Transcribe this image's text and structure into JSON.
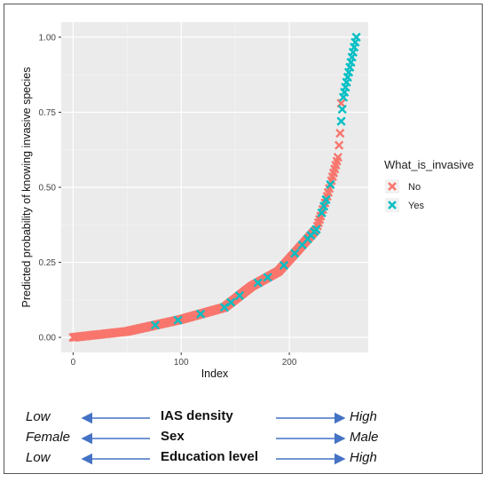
{
  "chart_data": {
    "type": "scatter",
    "title": "",
    "xlabel": "Index",
    "ylabel": "Predicted probability of knowing invasive species",
    "xlim": [
      -11,
      273
    ],
    "ylim": [
      -0.05,
      1.05
    ],
    "x_ticks": [
      0,
      100,
      200
    ],
    "x_tick_labels": [
      "0",
      "100",
      "200"
    ],
    "y_ticks": [
      0,
      0.25,
      0.5,
      0.75,
      1.0
    ],
    "y_tick_labels": [
      "0.00",
      "0.25",
      "0.50",
      "0.75",
      "1.00"
    ],
    "grid": true,
    "marker": "x",
    "legend": {
      "title": "What_is_invasive",
      "position": "right",
      "entries": [
        {
          "label": "No",
          "color": "#F8766D"
        },
        {
          "label": "Yes",
          "color": "#00BFC4"
        }
      ]
    },
    "series": [
      {
        "name": "No",
        "color": "#F8766D"
      },
      {
        "name": "Yes",
        "color": "#00BFC4"
      }
    ],
    "curve_keypoints": [
      [
        0,
        0.0
      ],
      [
        50,
        0.02
      ],
      [
        100,
        0.06
      ],
      [
        140,
        0.1
      ],
      [
        165,
        0.17
      ],
      [
        190,
        0.22
      ],
      [
        210,
        0.3
      ],
      [
        225,
        0.36
      ],
      [
        235,
        0.47
      ],
      [
        245,
        0.6
      ],
      [
        250,
        0.8
      ],
      [
        262,
        1.0
      ]
    ],
    "n_points": 262,
    "yes_indices": [
      76,
      97,
      118,
      140,
      146,
      154,
      171,
      180,
      195,
      205,
      212,
      217,
      220,
      223,
      225,
      230,
      232,
      234,
      238,
      248,
      249,
      250,
      251,
      252,
      253,
      254,
      255,
      256,
      257,
      258,
      259,
      260,
      261,
      262
    ],
    "no_outlier": {
      "x": 248,
      "y": 0.78
    }
  },
  "annotation": {
    "rows": [
      {
        "left": "Low",
        "middle": "IAS density",
        "right": "High"
      },
      {
        "left": "Female",
        "middle": "Sex",
        "right": "Male"
      },
      {
        "left": "Low",
        "middle": "Education level",
        "right": "High"
      }
    ],
    "arrow_color": "#4472C4"
  }
}
